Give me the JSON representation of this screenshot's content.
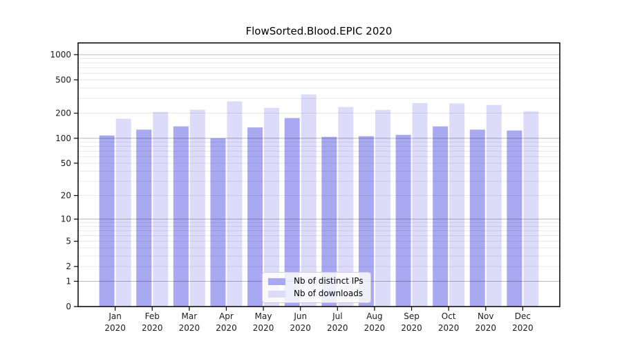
{
  "chart_data": {
    "type": "bar",
    "title": "FlowSorted.Blood.EPIC 2020",
    "categories": [
      "Jan",
      "Feb",
      "Mar",
      "Apr",
      "May",
      "Jun",
      "Jul",
      "Aug",
      "Sep",
      "Oct",
      "Nov",
      "Dec"
    ],
    "category_year": "2020",
    "series": [
      {
        "name": "Nb of distinct IPs",
        "color": "#a9a9f2",
        "values": [
          108,
          127,
          139,
          100,
          135,
          175,
          104,
          106,
          110,
          139,
          127,
          124
        ]
      },
      {
        "name": "Nb of downloads",
        "color": "#dcdcfa",
        "values": [
          172,
          207,
          220,
          277,
          232,
          335,
          237,
          219,
          264,
          262,
          251,
          211
        ]
      }
    ],
    "yscale": "log1p",
    "ylim": [
      0,
      1380
    ],
    "yticks": [
      1000,
      500,
      200,
      100,
      50,
      20,
      10,
      5,
      2,
      1,
      0
    ],
    "grid": true,
    "legend_position": "lower center"
  },
  "colors": {
    "grid_minor": "rgba(0,0,0,0.09)",
    "grid_major": "rgba(0,0,0,0.28)",
    "frame": "#000000",
    "tick_text": "#1a1a1a",
    "background": "#ffffff"
  }
}
